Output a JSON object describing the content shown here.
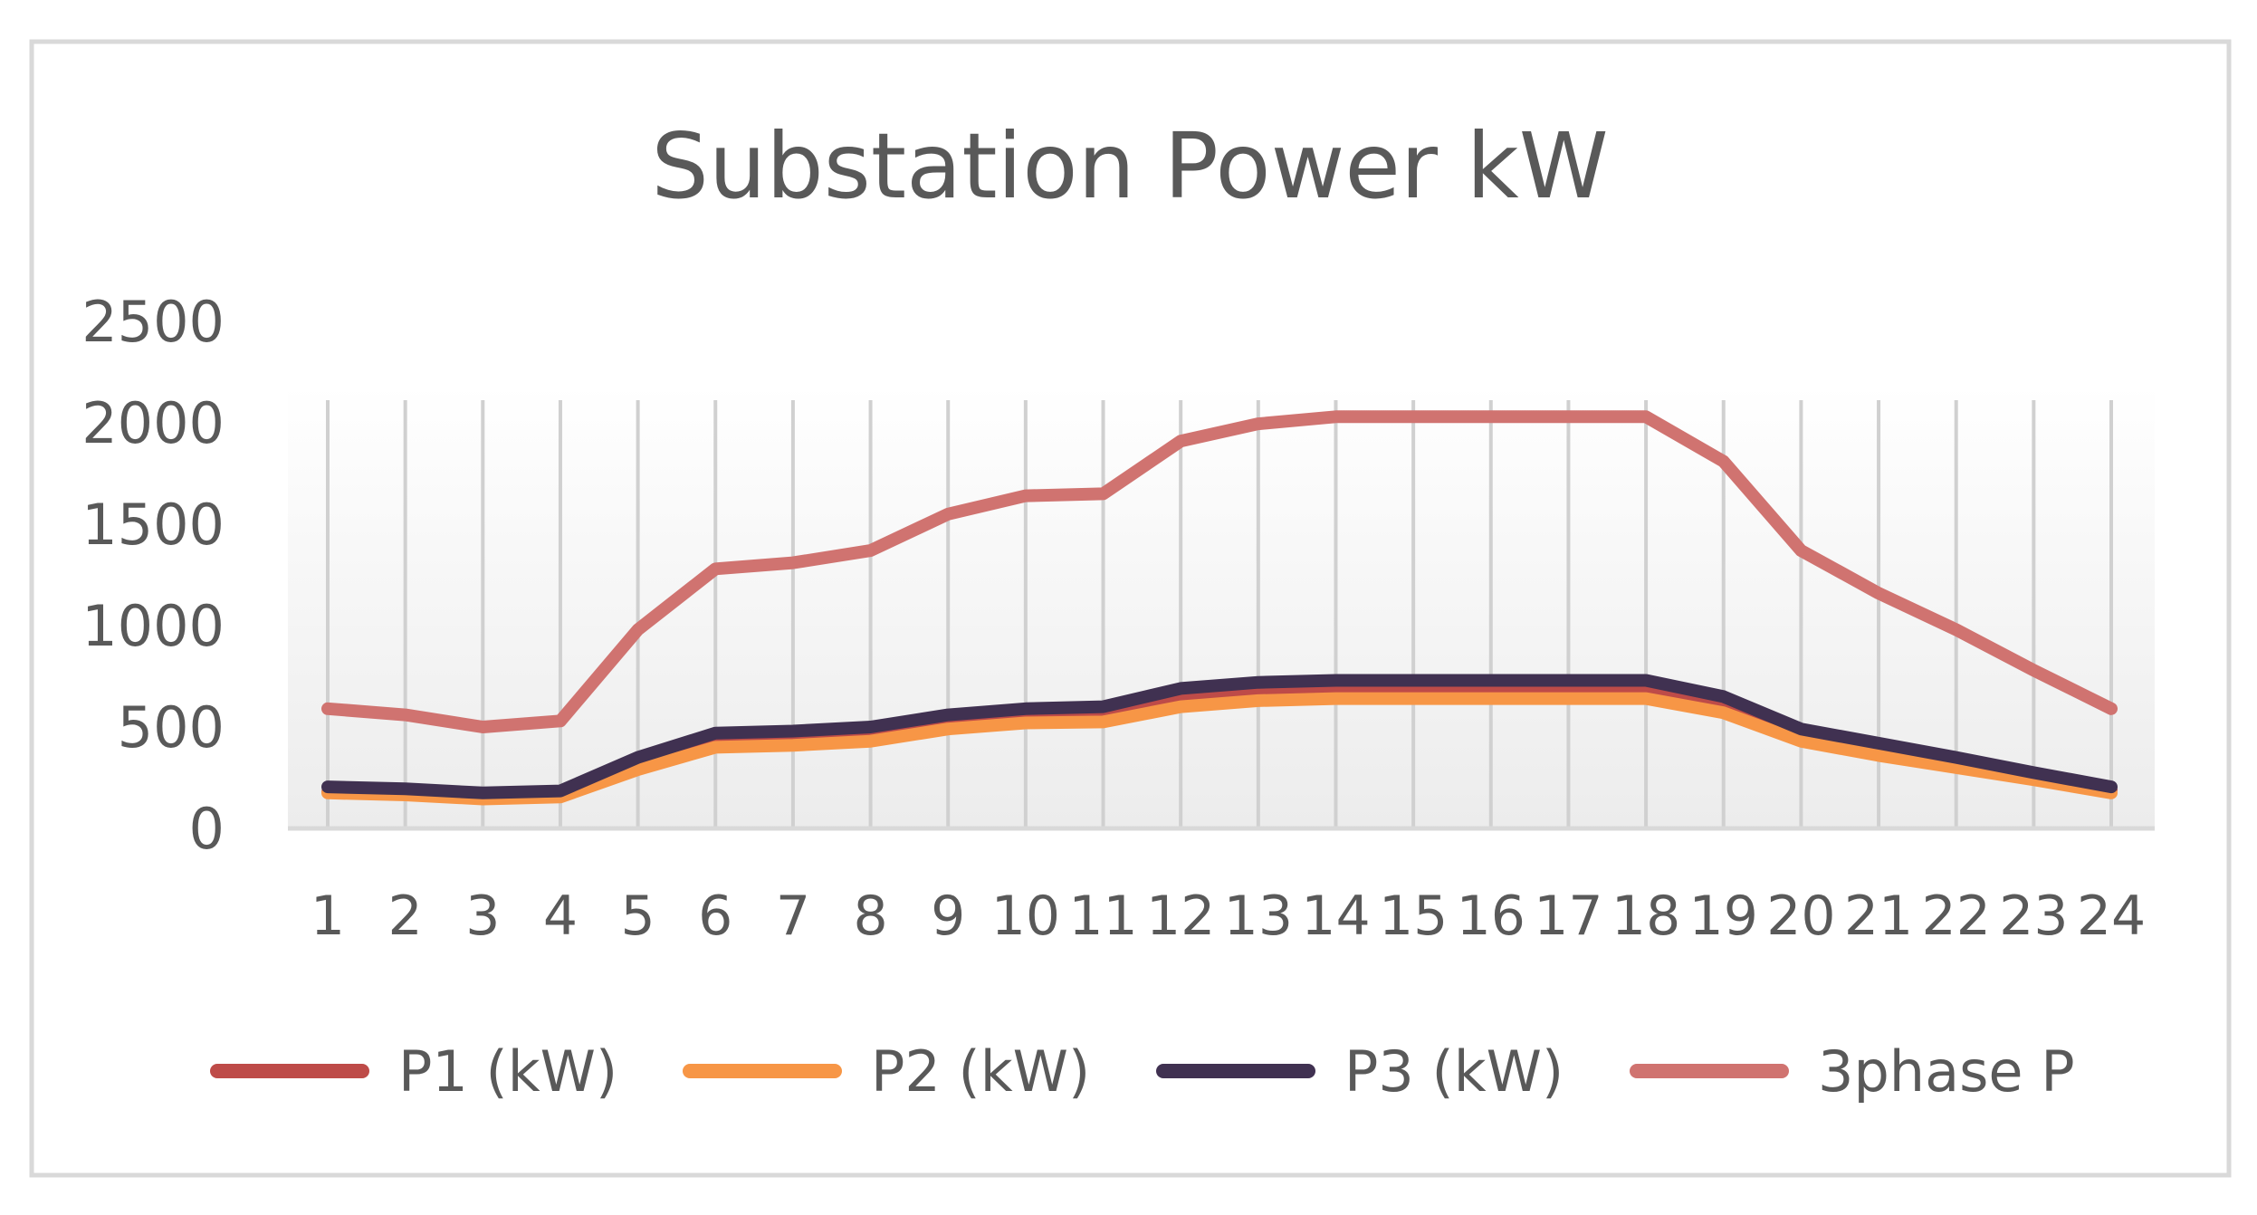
{
  "chart_data": {
    "type": "line",
    "title": "Substation Power kW",
    "xlabel": "",
    "ylabel": "",
    "categories": [
      "1",
      "2",
      "3",
      "4",
      "5",
      "6",
      "7",
      "8",
      "9",
      "10",
      "11",
      "12",
      "13",
      "14",
      "15",
      "16",
      "17",
      "18",
      "19",
      "20",
      "21",
      "22",
      "23",
      "24"
    ],
    "ylim": [
      0,
      2500
    ],
    "yticks": [
      "0",
      "500",
      "1000",
      "1500",
      "2000",
      "2500"
    ],
    "grid": "vertical",
    "legend_position": "bottom",
    "series": [
      {
        "name": "P1 (kW)",
        "color": "#be4b48",
        "values": [
          180,
          170,
          150,
          160,
          310,
          420,
          430,
          450,
          510,
          540,
          545,
          630,
          665,
          680,
          680,
          680,
          680,
          680,
          600,
          460,
          390,
          320,
          250,
          190
        ]
      },
      {
        "name": "P2 (kW)",
        "color": "#f79646",
        "values": [
          175,
          165,
          145,
          155,
          290,
          400,
          410,
          430,
          490,
          520,
          525,
          600,
          630,
          640,
          640,
          640,
          640,
          640,
          570,
          430,
          360,
          300,
          240,
          175
        ]
      },
      {
        "name": "P3 (kW)",
        "color": "#403151",
        "values": [
          205,
          195,
          175,
          185,
          350,
          470,
          480,
          500,
          560,
          590,
          600,
          690,
          720,
          730,
          730,
          730,
          730,
          730,
          650,
          490,
          420,
          350,
          275,
          205
        ]
      },
      {
        "name": "3phase P",
        "color": "#d07370",
        "values": [
          590,
          560,
          500,
          530,
          980,
          1280,
          1310,
          1370,
          1550,
          1640,
          1650,
          1910,
          1995,
          2030,
          2030,
          2030,
          2030,
          2030,
          1810,
          1370,
          1160,
          980,
          780,
          590
        ]
      }
    ]
  }
}
